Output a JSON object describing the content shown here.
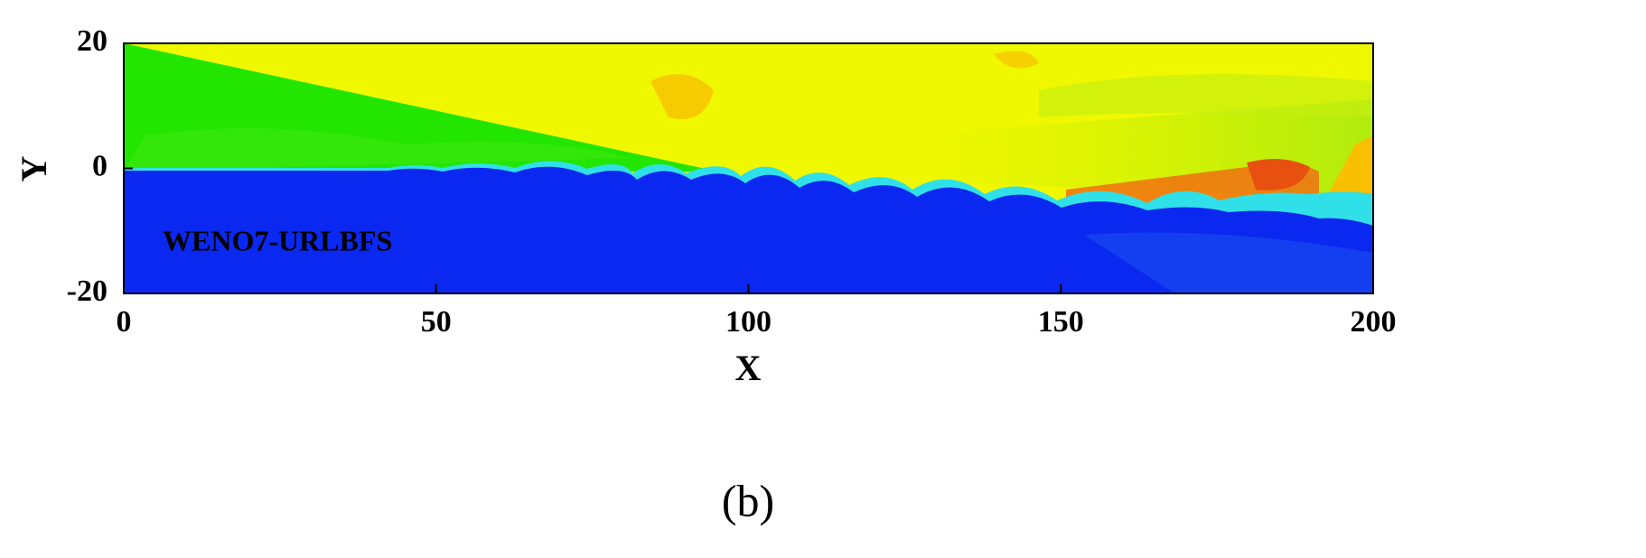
{
  "chart_data": {
    "type": "contour",
    "xlabel": "X",
    "ylabel": "Y",
    "annotation": "WENO7-URLBFS",
    "caption": "(b)",
    "xlim": [
      0,
      200
    ],
    "ylim": [
      -20,
      20
    ],
    "xticks": [
      0,
      50,
      100,
      150,
      200
    ],
    "yticks": [
      -20,
      0,
      20
    ]
  }
}
